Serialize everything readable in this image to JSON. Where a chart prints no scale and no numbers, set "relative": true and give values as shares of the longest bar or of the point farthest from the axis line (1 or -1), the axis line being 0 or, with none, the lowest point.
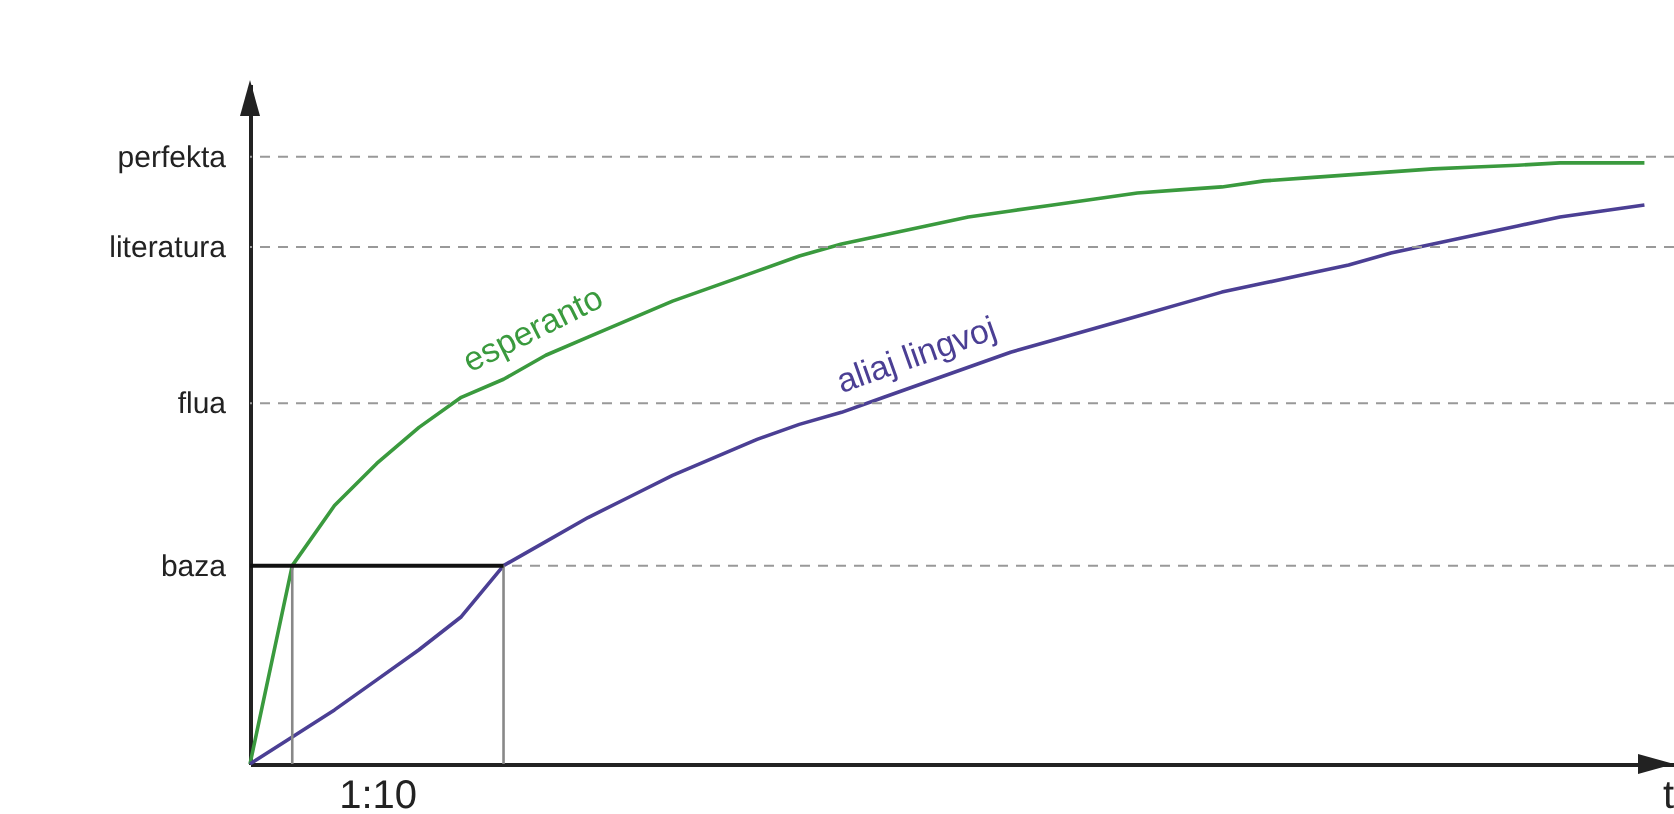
{
  "chart_data": {
    "type": "line",
    "relative": true,
    "xlabel": "t",
    "line_style": "solid",
    "annotations": [
      "1:10"
    ],
    "ref_lines": [
      {
        "axis": "y",
        "value": 0.33,
        "label": "baza",
        "color": "#999999",
        "line_style": "dashed"
      },
      {
        "axis": "y",
        "value": 0.6,
        "label": "flua",
        "color": "#999999",
        "line_style": "dashed"
      },
      {
        "axis": "y",
        "value": 0.86,
        "label": "literatura",
        "color": "#999999",
        "line_style": "dashed"
      },
      {
        "axis": "y",
        "value": 1.01,
        "label": "perfekta",
        "color": "#999999",
        "line_style": "dashed"
      }
    ],
    "categories": [
      null,
      null,
      null,
      null,
      null,
      null,
      null,
      null,
      null,
      null,
      null,
      null,
      null,
      null,
      null,
      null,
      null,
      null,
      null,
      null,
      null,
      null,
      null,
      null,
      null,
      null,
      null,
      null,
      null,
      null,
      null,
      null,
      null,
      null
    ],
    "series": [
      {
        "name": "esperanto",
        "color": "#3a9a3e",
        "values": [
          0,
          0.33,
          0.43,
          0.5,
          0.56,
          0.61,
          0.64,
          0.68,
          0.71,
          0.74,
          0.77,
          0.795,
          0.82,
          0.845,
          0.865,
          0.88,
          0.895,
          0.91,
          0.92,
          0.93,
          0.94,
          0.95,
          0.955,
          0.96,
          0.97,
          0.975,
          0.98,
          0.985,
          0.99,
          0.993,
          0.996,
          1,
          1,
          1
        ]
      },
      {
        "name": "aliaj lingvoj",
        "color": "#4b3f94",
        "values": [
          0,
          0.045,
          0.09,
          0.14,
          0.19,
          0.245,
          0.33,
          0.37,
          0.41,
          0.445,
          0.48,
          0.51,
          0.54,
          0.565,
          0.585,
          0.61,
          0.635,
          0.66,
          0.685,
          0.705,
          0.725,
          0.745,
          0.765,
          0.785,
          0.8,
          0.815,
          0.83,
          0.85,
          0.865,
          0.88,
          0.895,
          0.91,
          0.92,
          0.93
        ]
      }
    ]
  }
}
